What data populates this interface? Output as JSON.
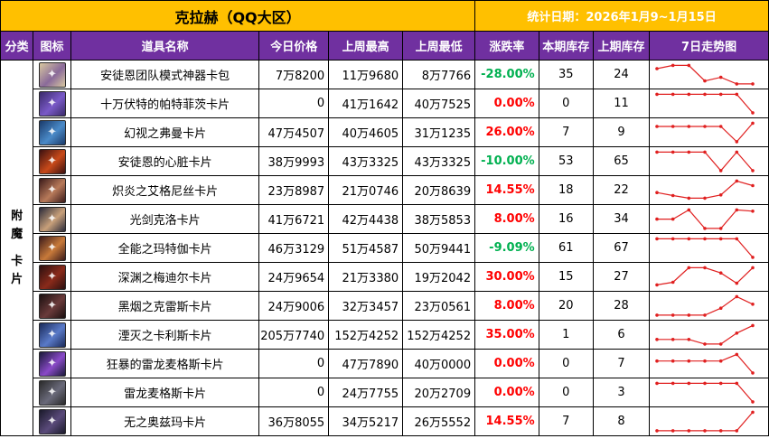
{
  "header": {
    "title": "克拉赫（QQ大区）",
    "date_label": "统计日期：2026年1月9~1月15日"
  },
  "columns": [
    "分类",
    "图标",
    "道具名称",
    "今日价格",
    "上周最高",
    "上周最低",
    "涨跌率",
    "本期库存",
    "上期库存",
    "7日走势图"
  ],
  "category": [
    "附",
    "魔",
    "卡",
    "片"
  ],
  "colors": {
    "header_bg": "#ffc000",
    "column_bg": "#7030a0",
    "up": "#ff0000",
    "down": "#00b050",
    "spark": "#e02020"
  },
  "rows": [
    {
      "name": "安徒恩团队模式神器卡包",
      "icon": "card-pack-icon",
      "icon_colors": [
        "#d8c8a0",
        "#8a6a9a"
      ],
      "today": "7万8200",
      "high": "11万9680",
      "low": "8万7766",
      "change": "-28.00%",
      "trend": "down",
      "stock_now": "35",
      "stock_prev": "24",
      "spark": [
        0.82,
        0.98,
        0.98,
        0.2,
        0.38,
        0.05,
        0.05
      ]
    },
    {
      "name": "十万伏特的帕特菲茨卡片",
      "icon": "purple-figure-icon",
      "icon_colors": [
        "#3a2a6a",
        "#7a5ac8"
      ],
      "today": "0",
      "high": "41万1642",
      "low": "40万7525",
      "change": "0.00%",
      "trend": "up",
      "stock_now": "0",
      "stock_prev": "11",
      "spark": [
        0.98,
        0.98,
        0.98,
        0.98,
        0.98,
        0.98,
        0.05
      ]
    },
    {
      "name": "幻视之弗曼卡片",
      "icon": "mage-portrait-icon",
      "icon_colors": [
        "#1a3a6a",
        "#4a8ac8"
      ],
      "today": "47万4507",
      "high": "40万4605",
      "low": "31万1235",
      "change": "26.00%",
      "trend": "up",
      "stock_now": "7",
      "stock_prev": "9",
      "spark": [
        0.82,
        0.82,
        0.82,
        0.82,
        0.82,
        0.05,
        0.98
      ]
    },
    {
      "name": "安徒恩的心脏卡片",
      "icon": "heart-core-icon",
      "icon_colors": [
        "#3a1010",
        "#c84a1a"
      ],
      "today": "38万9993",
      "high": "43万3325",
      "low": "43万3325",
      "change": "-10.00%",
      "trend": "down",
      "stock_now": "53",
      "stock_prev": "65",
      "spark": [
        0.98,
        0.98,
        0.98,
        0.98,
        0.05,
        0.98,
        0.05
      ]
    },
    {
      "name": "炽炎之艾格尼丝卡片",
      "icon": "flame-figure-icon",
      "icon_colors": [
        "#3a1a1a",
        "#b87a5a"
      ],
      "today": "23万8987",
      "high": "21万0746",
      "low": "20万8639",
      "change": "14.55%",
      "trend": "up",
      "stock_now": "18",
      "stock_prev": "22",
      "spark": [
        0.4,
        0.25,
        0.12,
        0.12,
        0.28,
        0.98,
        0.75
      ]
    },
    {
      "name": "光剑克洛卡片",
      "icon": "swordsman-icon",
      "icon_colors": [
        "#2a2a3a",
        "#c8a07a"
      ],
      "today": "41万6721",
      "high": "42万4438",
      "low": "38万5853",
      "change": "8.00%",
      "trend": "up",
      "stock_now": "16",
      "stock_prev": "34",
      "spark": [
        0.52,
        0.52,
        0.98,
        0.05,
        0.05,
        0.98,
        0.92
      ]
    },
    {
      "name": "全能之玛特伽卡片",
      "icon": "robed-figure-icon",
      "icon_colors": [
        "#3a1a1a",
        "#c87a3a"
      ],
      "today": "46万3129",
      "high": "51万4587",
      "low": "50万9441",
      "change": "-9.09%",
      "trend": "down",
      "stock_now": "61",
      "stock_prev": "67",
      "spark": [
        0.98,
        0.98,
        0.98,
        0.98,
        0.98,
        0.98,
        0.05
      ]
    },
    {
      "name": "深渊之梅迪尔卡片",
      "icon": "dark-dragon-icon",
      "icon_colors": [
        "#2a1010",
        "#8a2a1a"
      ],
      "today": "24万9654",
      "high": "21万3380",
      "low": "19万2042",
      "change": "30.00%",
      "trend": "up",
      "stock_now": "15",
      "stock_prev": "27",
      "spark": [
        0.12,
        0.25,
        0.98,
        0.98,
        0.72,
        0.2,
        0.98
      ]
    },
    {
      "name": "黑烟之克雷斯卡片",
      "icon": "smoke-figure-icon",
      "icon_colors": [
        "#1a1010",
        "#6a3a3a"
      ],
      "today": "24万9006",
      "high": "32万3457",
      "low": "23万0561",
      "change": "8.00%",
      "trend": "up",
      "stock_now": "20",
      "stock_prev": "28",
      "spark": [
        0.05,
        0.05,
        0.05,
        0.05,
        0.4,
        0.98,
        0.6
      ]
    },
    {
      "name": "湮灭之卡利斯卡片",
      "icon": "armored-knight-icon",
      "icon_colors": [
        "#1a2a5a",
        "#5a7ac8"
      ],
      "today": "205万7740",
      "high": "152万4252",
      "low": "152万4252",
      "change": "35.00%",
      "trend": "up",
      "stock_now": "1",
      "stock_prev": "6",
      "spark": [
        0.28,
        0.28,
        0.28,
        0.05,
        0.05,
        0.6,
        0.98
      ]
    },
    {
      "name": "狂暴的雷龙麦格斯卡片",
      "icon": "thunder-dragon-icon",
      "icon_colors": [
        "#1a1a3a",
        "#8a4ac8"
      ],
      "today": "0",
      "high": "47万7890",
      "low": "40万0000",
      "change": "0.00%",
      "trend": "up",
      "stock_now": "0",
      "stock_prev": "7",
      "spark": [
        0.65,
        0.65,
        0.65,
        0.65,
        0.65,
        0.98,
        0.05
      ]
    },
    {
      "name": "雷龙麦格斯卡片",
      "icon": "dragon-head-icon",
      "icon_colors": [
        "#2a2a2a",
        "#6a6a7a"
      ],
      "today": "0",
      "high": "24万7755",
      "low": "20万2709",
      "change": "0.00%",
      "trend": "up",
      "stock_now": "0",
      "stock_prev": "3",
      "spark": [
        0.98,
        0.98,
        0.98,
        0.98,
        0.98,
        0.98,
        0.05
      ]
    },
    {
      "name": "无之奥兹玛卡片",
      "icon": "void-figure-icon",
      "icon_colors": [
        "#1a1a2a",
        "#5a4a7a"
      ],
      "today": "36万8055",
      "high": "34万5217",
      "low": "26万5552",
      "change": "14.55%",
      "trend": "up",
      "stock_now": "7",
      "stock_prev": "8",
      "spark": [
        0.05,
        0.05,
        0.05,
        0.05,
        0.05,
        0.05,
        0.98
      ]
    }
  ]
}
